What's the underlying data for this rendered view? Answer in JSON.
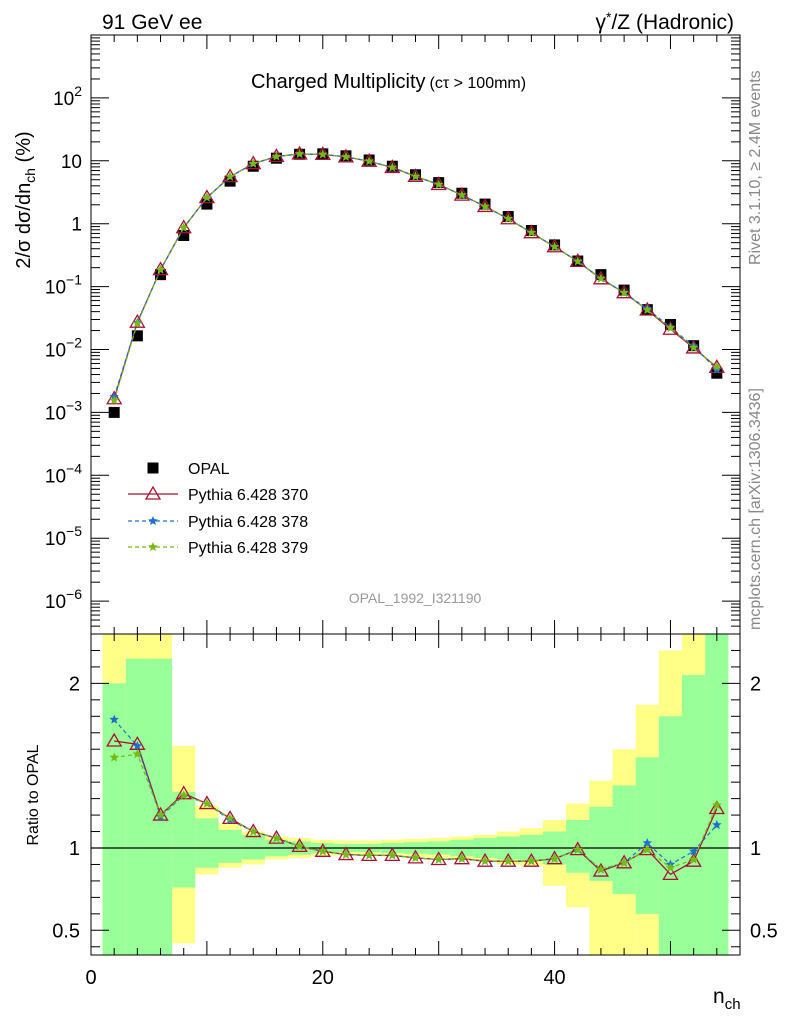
{
  "header": {
    "left": "91 GeV ee",
    "right_sup": "*",
    "right_main": "γ",
    "right_rest": "/Z (Hadronic)"
  },
  "title_main": "Charged Multiplicity",
  "title_sub": "(cτ > 100mm)",
  "watermark": "OPAL_1992_I321190",
  "side_top": "Rivet 3.1.10, ≥ 2.4M events",
  "side_bottom": "mcplots.cern.ch [arXiv:1306.3436]",
  "ylabel_main": "2/σ dσ/dn",
  "ylabel_sub": "ch",
  "ylabel_unit": " (%)",
  "ratio_ylabel": "Ratio to OPAL",
  "xlabel_main": "n",
  "xlabel_sub": "ch",
  "colors": {
    "data": "#000000",
    "p370": "#aa1133",
    "p378": "#1f6fd0",
    "p379": "#77bb11",
    "band_inner": "#99ff99",
    "band_outer": "#ffff88"
  },
  "chart_data": {
    "type": "scatter",
    "x": [
      2,
      4,
      6,
      8,
      10,
      12,
      14,
      16,
      18,
      20,
      22,
      24,
      26,
      28,
      30,
      32,
      34,
      36,
      38,
      40,
      42,
      44,
      46,
      48,
      50,
      52,
      54
    ],
    "xlim": [
      0,
      56
    ],
    "xticks": [
      0,
      20,
      40
    ],
    "ylim_main": [
      3e-07,
      1000
    ],
    "yscale_main": "log",
    "yticks_main": [
      {
        "v": 1e-06,
        "b": "10",
        "e": "−6"
      },
      {
        "v": 1e-05,
        "b": "10",
        "e": "−5"
      },
      {
        "v": 0.0001,
        "b": "10",
        "e": "−4"
      },
      {
        "v": 0.001,
        "b": "10",
        "e": "−3"
      },
      {
        "v": 0.01,
        "b": "10",
        "e": "−2"
      },
      {
        "v": 0.1,
        "b": "10",
        "e": "−1"
      },
      {
        "v": 1,
        "b": "1",
        "e": ""
      },
      {
        "v": 10,
        "b": "10",
        "e": ""
      },
      {
        "v": 100,
        "b": "10",
        "e": "2"
      }
    ],
    "ylim_ratio": [
      0.35,
      2.3
    ],
    "yticks_ratio": [
      0.5,
      1,
      2
    ],
    "yticks_ratio_labels": [
      "0.5",
      "1",
      "2"
    ],
    "legend_placement": "lower-left",
    "series": [
      {
        "name": "OPAL",
        "marker": "square",
        "color": "#000000",
        "values": [
          0.001,
          0.0165,
          0.155,
          0.65,
          2.05,
          4.75,
          8.2,
          11.0,
          12.7,
          12.9,
          12.0,
          10.3,
          8.2,
          6.0,
          4.5,
          3.05,
          2.05,
          1.3,
          0.78,
          0.46,
          0.255,
          0.155,
          0.088,
          0.043,
          0.025,
          0.0115,
          0.0042
        ]
      },
      {
        "name": "Pythia 6.428 370",
        "marker": "triangle",
        "line": "solid",
        "color": "#aa1133",
        "values": [
          0.00165,
          0.0272,
          0.186,
          0.865,
          2.6,
          5.6,
          9.0,
          11.7,
          12.85,
          12.65,
          11.55,
          9.85,
          7.85,
          5.65,
          4.2,
          2.85,
          1.88,
          1.2,
          0.72,
          0.43,
          0.252,
          0.133,
          0.08,
          0.0425,
          0.021,
          0.0106,
          0.0052
        ]
      },
      {
        "name": "Pythia 6.428 378",
        "marker": "star",
        "line": "dashed",
        "color": "#1f6fd0",
        "values": [
          0.00178,
          0.0268,
          0.185,
          0.86,
          2.6,
          5.58,
          9.0,
          11.7,
          12.85,
          12.65,
          11.55,
          9.85,
          7.85,
          5.65,
          4.2,
          2.85,
          1.88,
          1.2,
          0.72,
          0.43,
          0.252,
          0.135,
          0.08,
          0.0445,
          0.0225,
          0.0113,
          0.0048
        ]
      },
      {
        "name": "Pythia 6.428 379",
        "marker": "star",
        "line": "dashed",
        "color": "#77bb11",
        "values": [
          0.00156,
          0.026,
          0.186,
          0.86,
          2.6,
          5.6,
          9.0,
          11.7,
          12.85,
          12.65,
          11.55,
          9.85,
          7.85,
          5.65,
          4.2,
          2.85,
          1.88,
          1.2,
          0.72,
          0.43,
          0.252,
          0.135,
          0.08,
          0.0425,
          0.022,
          0.0107,
          0.0053
        ]
      }
    ],
    "ratio": {
      "p370": [
        1.65,
        1.63,
        1.2,
        1.33,
        1.27,
        1.18,
        1.1,
        1.06,
        1.01,
        0.98,
        0.96,
        0.955,
        0.955,
        0.94,
        0.93,
        0.935,
        0.92,
        0.92,
        0.92,
        0.935,
        0.99,
        0.86,
        0.91,
        0.99,
        0.84,
        0.92,
        1.24
      ],
      "p378": [
        1.78,
        1.62,
        1.19,
        1.32,
        1.27,
        1.17,
        1.1,
        1.06,
        1.01,
        0.98,
        0.96,
        0.955,
        0.955,
        0.94,
        0.93,
        0.935,
        0.92,
        0.92,
        0.92,
        0.935,
        0.99,
        0.87,
        0.91,
        1.03,
        0.9,
        0.98,
        1.14
      ],
      "p379": [
        1.55,
        1.57,
        1.2,
        1.32,
        1.27,
        1.18,
        1.1,
        1.06,
        1.01,
        0.98,
        0.96,
        0.955,
        0.955,
        0.94,
        0.93,
        0.935,
        0.92,
        0.92,
        0.92,
        0.935,
        0.99,
        0.87,
        0.91,
        0.99,
        0.88,
        0.93,
        1.26
      ],
      "band_inner": [
        [
          1,
          3,
          0.35,
          2.0
        ],
        [
          3,
          5,
          0.35,
          2.15
        ],
        [
          5,
          7,
          0.35,
          2.15
        ],
        [
          7,
          9,
          0.76,
          1.34
        ],
        [
          9,
          11,
          0.88,
          1.18
        ],
        [
          11,
          13,
          0.91,
          1.11
        ],
        [
          13,
          15,
          0.93,
          1.08
        ],
        [
          15,
          17,
          0.95,
          1.05
        ],
        [
          17,
          19,
          0.96,
          1.04
        ],
        [
          19,
          21,
          0.97,
          1.03
        ],
        [
          21,
          23,
          0.975,
          1.025
        ],
        [
          23,
          25,
          0.975,
          1.025
        ],
        [
          25,
          27,
          0.97,
          1.03
        ],
        [
          27,
          29,
          0.965,
          1.035
        ],
        [
          29,
          31,
          0.96,
          1.04
        ],
        [
          31,
          33,
          0.95,
          1.05
        ],
        [
          33,
          35,
          0.94,
          1.06
        ],
        [
          35,
          37,
          0.93,
          1.07
        ],
        [
          37,
          39,
          0.92,
          1.08
        ],
        [
          39,
          41,
          0.9,
          1.1
        ],
        [
          41,
          43,
          0.85,
          1.17
        ],
        [
          43,
          45,
          0.8,
          1.25
        ],
        [
          45,
          47,
          0.72,
          1.38
        ],
        [
          47,
          49,
          0.6,
          1.55
        ],
        [
          49,
          51,
          0.35,
          1.8
        ],
        [
          51,
          53,
          0.35,
          2.05
        ],
        [
          53,
          55,
          0.35,
          2.3
        ]
      ],
      "band_outer": [
        [
          1,
          3,
          0.35,
          2.3
        ],
        [
          3,
          5,
          0.35,
          2.3
        ],
        [
          5,
          7,
          0.35,
          2.3
        ],
        [
          7,
          9,
          0.42,
          1.62
        ],
        [
          9,
          11,
          0.84,
          1.26
        ],
        [
          11,
          13,
          0.88,
          1.15
        ],
        [
          13,
          15,
          0.9,
          1.1
        ],
        [
          15,
          17,
          0.93,
          1.07
        ],
        [
          17,
          19,
          0.94,
          1.06
        ],
        [
          19,
          21,
          0.95,
          1.05
        ],
        [
          21,
          23,
          0.955,
          1.045
        ],
        [
          23,
          25,
          0.955,
          1.045
        ],
        [
          25,
          27,
          0.95,
          1.05
        ],
        [
          27,
          29,
          0.945,
          1.055
        ],
        [
          29,
          31,
          0.94,
          1.06
        ],
        [
          31,
          33,
          0.93,
          1.07
        ],
        [
          33,
          35,
          0.92,
          1.08
        ],
        [
          35,
          37,
          0.9,
          1.1
        ],
        [
          37,
          39,
          0.89,
          1.12
        ],
        [
          39,
          41,
          0.77,
          1.17
        ],
        [
          41,
          43,
          0.64,
          1.27
        ],
        [
          43,
          45,
          0.35,
          1.41
        ],
        [
          45,
          47,
          0.35,
          1.6
        ],
        [
          47,
          49,
          0.35,
          1.87
        ],
        [
          49,
          51,
          0.35,
          2.2
        ],
        [
          51,
          53,
          0.35,
          2.3
        ],
        [
          53,
          55,
          0.35,
          2.3
        ]
      ]
    }
  }
}
